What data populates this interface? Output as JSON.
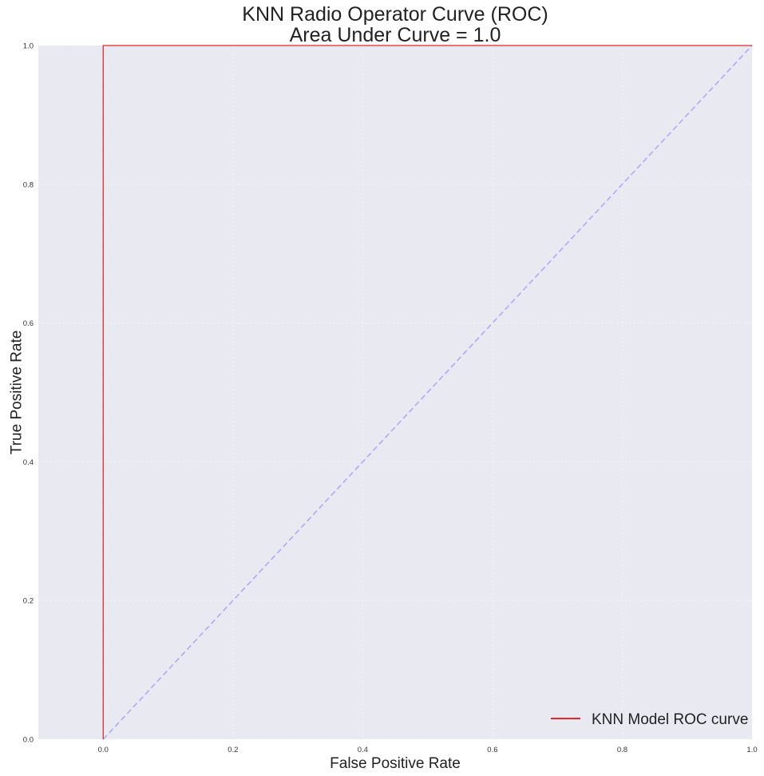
{
  "chart_data": {
    "type": "line",
    "title": "KNN Radio Operator Curve (ROC)",
    "subtitle": "Area Under Curve = 1.0",
    "xlabel": "False Positive Rate",
    "ylabel": "True Positive Rate",
    "xlim": [
      -0.1,
      1.0
    ],
    "ylim": [
      0.0,
      1.0
    ],
    "x_ticks": [
      "0.0",
      "0.2",
      "0.4",
      "0.6",
      "0.8",
      "1.0"
    ],
    "y_ticks": [
      "0.0",
      "0.2",
      "0.4",
      "0.6",
      "0.8",
      "1.0"
    ],
    "grid": true,
    "legend_position": "lower right",
    "series": [
      {
        "name": "KNN Model ROC curve",
        "color": "#e8262a",
        "style": "solid",
        "x": [
          0.0,
          0.0,
          1.0
        ],
        "y": [
          0.0,
          1.0,
          1.0
        ]
      },
      {
        "color": "#aaaaff",
        "style": "dashed",
        "x": [
          0.0,
          1.0
        ],
        "y": [
          0.0,
          1.0
        ]
      }
    ],
    "legend": [
      "KNN Model ROC curve"
    ]
  },
  "colors": {
    "plot_background": "#e9e9f1",
    "grid": "#f4f4f8",
    "roc_line": "#e8262a",
    "chance_line": "#aaaaff"
  }
}
